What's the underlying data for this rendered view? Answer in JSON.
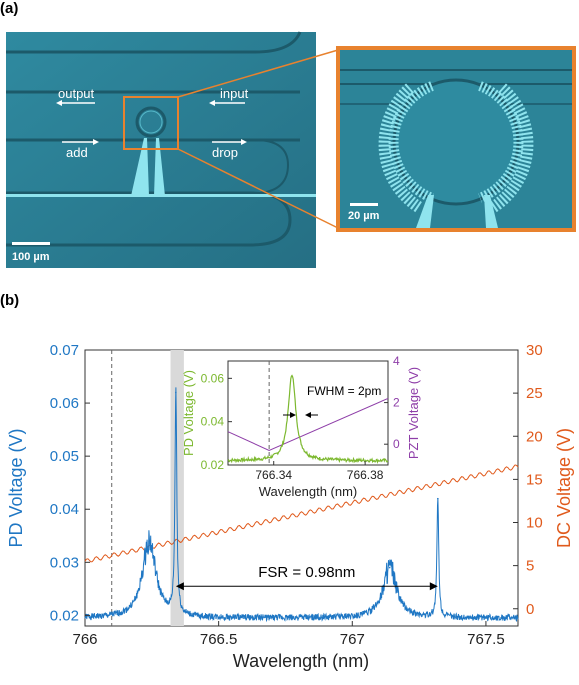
{
  "figure": {
    "panel_a_label": "(a)",
    "panel_b_label": "(b)"
  },
  "micrograph": {
    "labels": {
      "output": "output",
      "input": "input",
      "add": "add",
      "drop": "drop"
    },
    "scale_bar_main": "100 µm",
    "scale_bar_zoom": "20 µm",
    "colors": {
      "background": "#2a7e94",
      "waveguide": "#8fe4ee",
      "zoom_frame": "#e8822e"
    }
  },
  "chart_data": [
    {
      "type": "line",
      "title": "",
      "xlabel": "Wavelength (nm)",
      "ylabel_left": "PD Voltage (V)",
      "ylabel_right": "DC Voltage (V)",
      "xlim": [
        766.0,
        767.62
      ],
      "ylim_left": [
        0.018,
        0.07
      ],
      "ylim_right": [
        -2.0,
        30.0
      ],
      "xticks": [
        "766",
        "766.5",
        "767",
        "767.5"
      ],
      "yticks_left": [
        "0.02",
        "0.03",
        "0.04",
        "0.05",
        "0.06",
        "0.07"
      ],
      "yticks_right": [
        "0",
        "5",
        "10",
        "15",
        "20",
        "25",
        "30"
      ],
      "grid": false,
      "colors": {
        "pd": "#1f77c4",
        "dc": "#e05a1c"
      },
      "series": [
        {
          "axis": "left",
          "peaks": [
            {
              "x": 766.24,
              "y": 0.034
            },
            {
              "x": 766.34,
              "y": 0.062
            },
            {
              "x": 767.14,
              "y": 0.029
            },
            {
              "x": 767.32,
              "y": 0.042
            }
          ],
          "baseline": 0.0195
        },
        {
          "axis": "right",
          "x": [
            766.0,
            767.62
          ],
          "y": [
            5.5,
            16.5
          ]
        }
      ],
      "annotations": {
        "fsr_label": "FSR = 0.98nm",
        "fsr_x": [
          766.34,
          767.32
        ],
        "fsr_y": 0.0255,
        "dashed_line_x": 766.1,
        "shaded_band_x": [
          766.32,
          766.37
        ]
      }
    },
    {
      "type": "line",
      "title": "",
      "xlabel": "Wavelength (nm)",
      "ylabel_left": "PD Voltage (V)",
      "ylabel_right": "PZT Voltage (V)",
      "xlim": [
        766.32,
        766.39
      ],
      "ylim_left": [
        0.02,
        0.068
      ],
      "ylim_right": [
        -1.0,
        4.0
      ],
      "xticks": [
        "766.34",
        "766.38"
      ],
      "yticks_left": [
        "0.02",
        "0.04",
        "0.06"
      ],
      "yticks_right": [
        "0",
        "2",
        "4"
      ],
      "grid": false,
      "colors": {
        "pd": "#7cb82f",
        "pzt": "#8e3ea8"
      },
      "series": [
        {
          "axis": "left",
          "peak_x": 766.348,
          "peak_y": 0.062,
          "baseline": 0.022
        },
        {
          "axis": "right",
          "x": [
            766.32,
            766.338,
            766.39
          ],
          "y": [
            0.6,
            -0.3,
            2.2
          ]
        }
      ],
      "annotations": {
        "fwhm_label": "FWHM = 2pm",
        "dashed_line_x": 766.338
      }
    }
  ]
}
